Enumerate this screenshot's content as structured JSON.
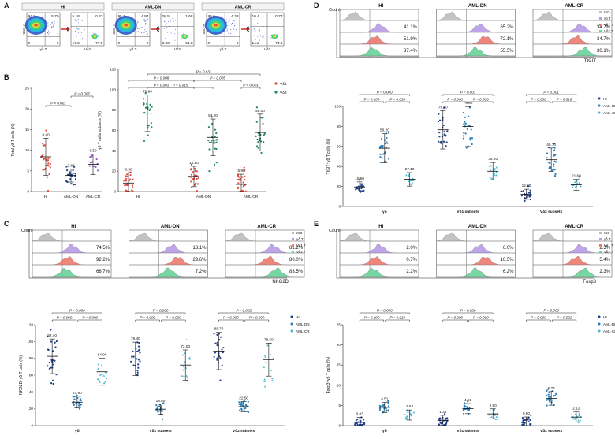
{
  "panels": {
    "A": {
      "letter": "A",
      "groups": [
        {
          "title": "HI",
          "q1_ul": "94.3",
          "q1_ur": "5.70",
          "q2_ul": "5.18",
          "q2_ur": "0.32",
          "q2_ll": "17.0",
          "q2_lr": "77.5",
          "q1_lo": "0",
          "q1_lo2": "0"
        },
        {
          "title": "AML-DN",
          "q1_ul": "95.1",
          "q1_ur": "4.94",
          "q2_ul": "28.5",
          "q2_ur": "1.68",
          "q2_ll": "8.03",
          "q2_lr": "61.8",
          "q1_lo": "0",
          "q1_lo2": "0"
        },
        {
          "title": "AML-CR",
          "q1_ul": "95.6",
          "q1_ur": "4.38",
          "q2_ul": "10.4",
          "q2_ur": "0.77",
          "q2_ll": "14.2",
          "q2_lr": "74.6",
          "q1_lo": "0",
          "q1_lo2": "0"
        }
      ],
      "ssc": "SSC-A",
      "gd": "γδ T",
      "vd1": "Vδ1",
      "vd2": "Vδ2"
    },
    "B": {
      "letter": "B",
      "left": {
        "ylabel": "Total γδ T cells (%)",
        "yticks": [
          "0",
          "5",
          "10",
          "15",
          "20",
          "25"
        ],
        "groups": [
          "HI",
          "AML-DN",
          "AML-CR"
        ],
        "values": [
          "8.40",
          "3.88",
          "6.59"
        ],
        "p1": "P < 0.001",
        "p2": "P = 0.007"
      },
      "right": {
        "ylabel": "γδ T cells subsets (%)",
        "yticks": [
          "0",
          "20",
          "40",
          "60",
          "80",
          "100",
          "120"
        ],
        "groups": [
          "HI",
          "AML-DN",
          "AML-CR"
        ],
        "vd1": [
          "8.30",
          "14.80",
          "6.98"
        ],
        "vd2": [
          "76.90",
          "53.20",
          "58.00"
        ],
        "p_top": "P = 0.631",
        "p_a": "P = 0.008",
        "p_b": "P = 0.005",
        "p_c": "P < 0.001",
        "p_d": "P = 0.015",
        "p_e": "P < 0.001",
        "legend": [
          "Vδ1",
          "Vδ2"
        ]
      }
    },
    "C": {
      "letter": "C",
      "cols": [
        "HI",
        "AML-DN",
        "AML-CR"
      ],
      "pcts": [
        [
          "74.5%",
          "92.2%",
          "68.7%"
        ],
        [
          "13.1%",
          "29.6%",
          "7.2%"
        ],
        [
          "81.2%",
          "80.0%",
          "83.5%"
        ]
      ],
      "legend": [
        "ISO",
        "γδ T",
        "Vδ1 T",
        "Vδ2 T"
      ],
      "marker": "NKG2D",
      "count": "Count",
      "ylabel": "NKG2D⁺γδ T cells (%)",
      "yticks": [
        "0",
        "20",
        "40",
        "60",
        "80",
        "100",
        "120"
      ],
      "xgroups": [
        "γδ",
        "Vδ1 subsets",
        "Vδ2 subsets"
      ],
      "values": [
        [
          "82.40",
          "27.90",
          "64.00"
        ],
        [
          "79.40",
          "19.50",
          "72.00"
        ],
        [
          "88.70",
          "22.50",
          "78.50"
        ]
      ],
      "ptop": [
        "P = 0.000",
        "P = 0.000",
        "P = 0.002"
      ],
      "pleft": [
        "P = 0.000",
        "P = 0.000",
        "P = 0.000"
      ],
      "pright": [
        "P = 0.000",
        "P = 0.000",
        "P = 0.000"
      ],
      "groups_legend": [
        "HI",
        "AML-DN",
        "AML-CR"
      ]
    },
    "D": {
      "letter": "D",
      "cols": [
        "HI",
        "AML-DN",
        "AML-CR"
      ],
      "pcts": [
        [
          "41.1%",
          "51.9%",
          "37.4%"
        ],
        [
          "65.2%",
          "72.1%",
          "55.5%"
        ],
        [
          "34.7%",
          "34.7%",
          "30.1%"
        ]
      ],
      "legend": [
        "ISO",
        "γδ T",
        "Vδ1 T",
        "Vδ2 T"
      ],
      "marker": "TIGIT",
      "count": "Count",
      "ylabel": "TIGIT⁺γδ T cells (%)",
      "yticks": [
        "0",
        "20",
        "40",
        "60",
        "80",
        "100"
      ],
      "xgroups": [
        "γδ",
        "Vδ1 subsets",
        "Vδ2 subsets"
      ],
      "values": [
        [
          "19.50",
          "58.20",
          "27.10"
        ],
        [
          "76.60",
          "79.90",
          "35.20"
        ],
        [
          "12.20",
          "46.70",
          "21.60"
        ]
      ],
      "ptop": [
        "P = 0.000",
        "P = 0.001",
        "P = 0.001"
      ],
      "pleft": [
        "P = 0.000",
        "P = 0.000",
        "P = 0.000"
      ],
      "pright": [
        "P = 0.033",
        "P = 0.000",
        "P = 0.016"
      ],
      "groups_legend": [
        "HI",
        "AML-DN",
        "AML-CR"
      ]
    },
    "E": {
      "letter": "E",
      "cols": [
        "HI",
        "AML-DN",
        "AML-CR"
      ],
      "pcts": [
        [
          "2.0%",
          "0.7%",
          "2.2%"
        ],
        [
          "6.0%",
          "10.5%",
          "6.2%"
        ],
        [
          "2.3%",
          "5.4%",
          "2.3%"
        ]
      ],
      "legend": [
        "ISO",
        "γδ T",
        "Vδ1 T",
        "Vδ2 T"
      ],
      "marker": "Foxp3",
      "count": "Count",
      "ylabel": "Foxp3⁺γδ T cells (%)",
      "yticks": [
        "0",
        "5",
        "10",
        "15",
        "20",
        "25"
      ],
      "xgroups": [
        "γδ",
        "Vδ1 subsets",
        "Vδ2 subsets"
      ],
      "values": [
        [
          "0.83",
          "4.51",
          "2.62"
        ],
        [
          "1.31",
          "4.21",
          "2.90"
        ],
        [
          "0.90",
          "6.74",
          "2.12"
        ]
      ],
      "ptop": [
        "P = 0.000",
        "P = 0.000",
        "P = 0.000"
      ],
      "pleft": [
        "P = 0.000",
        "P = 0.000",
        "P = 0.000"
      ],
      "pright": [
        "P = 0.010",
        "P = 0.000",
        "P = 0.002"
      ],
      "groups_legend": [
        "HI",
        "AML-DN",
        "AML-CR"
      ]
    }
  },
  "colors": {
    "vd1": "#e8473f",
    "vd2": "#1f8a5b",
    "purple": "#9a5bd0",
    "hi": "#1f3f8c",
    "dn": "#2a7fb8",
    "cr": "#45b8d0",
    "iso": "#bdbdbd",
    "gd": "#b79be6",
    "vd1h": "#ee7a6e",
    "vd2h": "#69d39a",
    "arrow": "#e0322b"
  }
}
